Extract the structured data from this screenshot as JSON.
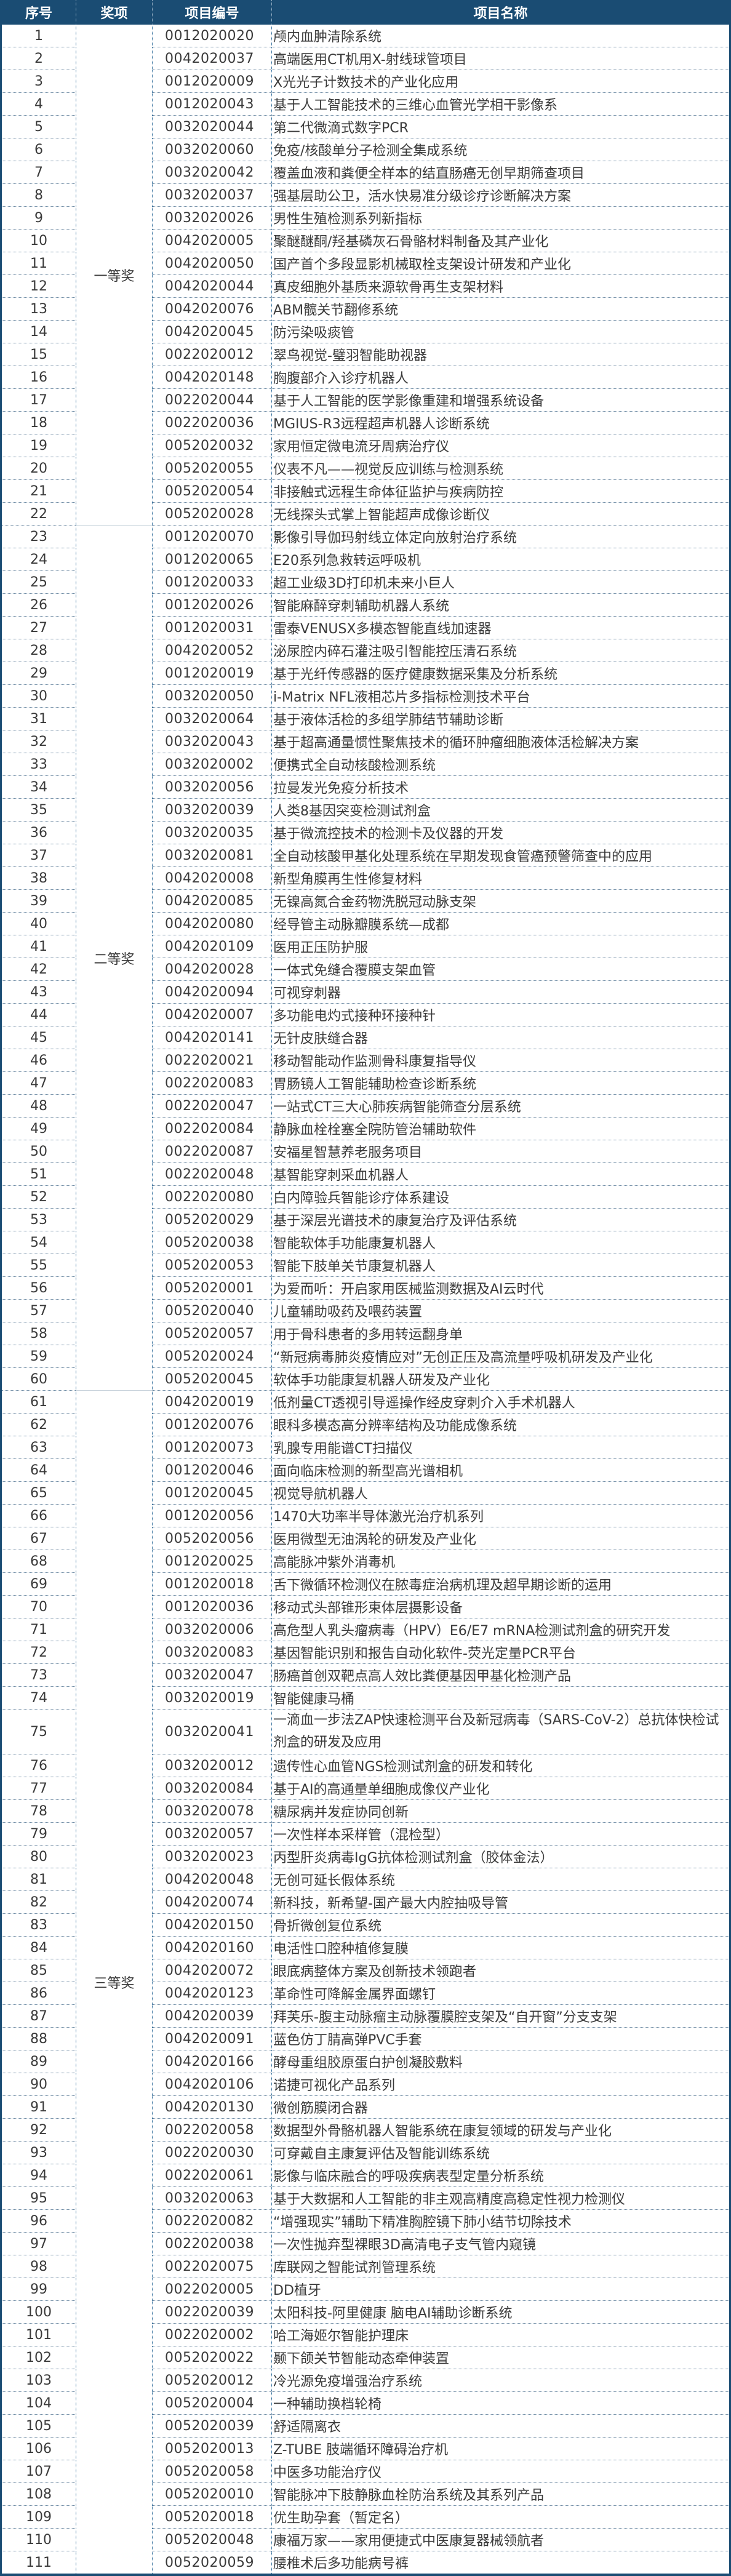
{
  "header": {
    "seq": "序号",
    "award": "奖项",
    "code": "项目编号",
    "name": "项目名称"
  },
  "colors": {
    "header_bg": "#1a4c73",
    "header_text": "#ffffff",
    "text": "#3a3a3a"
  },
  "awards": [
    {
      "label": "一等奖",
      "from": 1,
      "to": 22
    },
    {
      "label": "二等奖",
      "from": 23,
      "to": 60
    },
    {
      "label": "三等奖",
      "from": 61,
      "to": 111
    }
  ],
  "rows": [
    {
      "seq": "1",
      "code": "0012020020",
      "name": "颅内血肿清除系统"
    },
    {
      "seq": "2",
      "code": "0042020037",
      "name": "高端医用CT机用X-射线球管项目"
    },
    {
      "seq": "3",
      "code": "0012020009",
      "name": "X光光子计数技术的产业化应用"
    },
    {
      "seq": "4",
      "code": "0012020043",
      "name": "基于人工智能技术的三维心血管光学相干影像系"
    },
    {
      "seq": "5",
      "code": "0032020044",
      "name": "第二代微滴式数字PCR"
    },
    {
      "seq": "6",
      "code": "0032020060",
      "name": "免疫/核酸单分子检测全集成系统"
    },
    {
      "seq": "7",
      "code": "0032020042",
      "name": "覆盖血液和粪便全样本的结直肠癌无创早期筛查项目"
    },
    {
      "seq": "8",
      "code": "0032020037",
      "name": "强基层助公卫，活水快易准分级诊疗诊断解决方案"
    },
    {
      "seq": "9",
      "code": "0032020026",
      "name": "男性生殖检测系列新指标"
    },
    {
      "seq": "10",
      "code": "0042020005",
      "name": "聚醚醚酮/羟基磷灰石骨骼材料制备及其产业化"
    },
    {
      "seq": "11",
      "code": "0042020050",
      "name": "国产首个多段显影机械取栓支架设计研发和产业化"
    },
    {
      "seq": "12",
      "code": "0042020044",
      "name": "真皮细胞外基质来源软骨再生支架材料"
    },
    {
      "seq": "13",
      "code": "0042020076",
      "name": "ABM髋关节翻修系统"
    },
    {
      "seq": "14",
      "code": "0042020045",
      "name": "防污染吸痰管"
    },
    {
      "seq": "15",
      "code": "0022020012",
      "name": "翠鸟视觉-璧羽智能助视器"
    },
    {
      "seq": "16",
      "code": "0042020148",
      "name": "胸腹部介入诊疗机器人"
    },
    {
      "seq": "17",
      "code": "0022020044",
      "name": "基于人工智能的医学影像重建和增强系统设备"
    },
    {
      "seq": "18",
      "code": "0022020036",
      "name": "MGIUS-R3远程超声机器人诊断系统"
    },
    {
      "seq": "19",
      "code": "0052020032",
      "name": "家用恒定微电流牙周病治疗仪"
    },
    {
      "seq": "20",
      "code": "0052020055",
      "name": "仪表不凡——视觉反应训练与检测系统"
    },
    {
      "seq": "21",
      "code": "0052020054",
      "name": "非接触式远程生命体征监护与疾病防控"
    },
    {
      "seq": "22",
      "code": "0052020028",
      "name": "无线探头式掌上智能超声成像诊断仪"
    },
    {
      "seq": "23",
      "code": "0012020070",
      "name": "影像引导伽玛射线立体定向放射治疗系统"
    },
    {
      "seq": "24",
      "code": "0012020065",
      "name": "E20系列急救转运呼吸机"
    },
    {
      "seq": "25",
      "code": "0012020033",
      "name": "超工业级3D打印机未来小巨人"
    },
    {
      "seq": "26",
      "code": "0012020026",
      "name": "智能麻醉穿刺辅助机器人系统"
    },
    {
      "seq": "27",
      "code": "0012020031",
      "name": "雷泰VENUSX多模态智能直线加速器"
    },
    {
      "seq": "28",
      "code": "0042020052",
      "name": "泌尿腔内碎石灌注吸引智能控压清石系统"
    },
    {
      "seq": "29",
      "code": "0012020019",
      "name": "基于光纤传感器的医疗健康数据采集及分析系统"
    },
    {
      "seq": "30",
      "code": "0032020050",
      "name": "i-Matrix NFL液相芯片多指标检测技术平台"
    },
    {
      "seq": "31",
      "code": "0032020064",
      "name": "基于液体活检的多组学肺结节辅助诊断"
    },
    {
      "seq": "32",
      "code": "0032020043",
      "name": "基于超高通量惯性聚焦技术的循环肿瘤细胞液体活检解决方案"
    },
    {
      "seq": "33",
      "code": "0032020002",
      "name": "便携式全自动核酸检测系统"
    },
    {
      "seq": "34",
      "code": "0032020056",
      "name": "拉曼发光免疫分析技术"
    },
    {
      "seq": "35",
      "code": "0032020039",
      "name": "人类8基因突变检测试剂盒"
    },
    {
      "seq": "36",
      "code": "0032020035",
      "name": "基于微流控技术的检测卡及仪器的开发"
    },
    {
      "seq": "37",
      "code": "0032020081",
      "name": "全自动核酸甲基化处理系统在早期发现食管癌预警筛查中的应用"
    },
    {
      "seq": "38",
      "code": "0042020008",
      "name": "新型角膜再生性修复材料"
    },
    {
      "seq": "39",
      "code": "0042020085",
      "name": "无镍高氮合金药物洗脱冠动脉支架"
    },
    {
      "seq": "40",
      "code": "0042020080",
      "name": "经导管主动脉瓣膜系统—成都"
    },
    {
      "seq": "41",
      "code": "0042020109",
      "name": "医用正压防护服"
    },
    {
      "seq": "42",
      "code": "0042020028",
      "name": "一体式免缝合覆膜支架血管"
    },
    {
      "seq": "43",
      "code": "0042020094",
      "name": "可视穿刺器"
    },
    {
      "seq": "44",
      "code": "0042020007",
      "name": "多功能电灼式接种环接种针"
    },
    {
      "seq": "45",
      "code": "0042020141",
      "name": "无针皮肤缝合器"
    },
    {
      "seq": "46",
      "code": "0022020021",
      "name": "移动智能动作监测骨科康复指导仪"
    },
    {
      "seq": "47",
      "code": "0022020083",
      "name": "胃肠镜人工智能辅助检查诊断系统"
    },
    {
      "seq": "48",
      "code": "0022020047",
      "name": "一站式CT三大心肺疾病智能筛查分层系统"
    },
    {
      "seq": "49",
      "code": "0022020084",
      "name": "静脉血栓栓塞全院防管治辅助软件"
    },
    {
      "seq": "50",
      "code": "0022020087",
      "name": "安福星智慧养老服务项目"
    },
    {
      "seq": "51",
      "code": "0022020048",
      "name": "基智能穿刺采血机器人"
    },
    {
      "seq": "52",
      "code": "0022020080",
      "name": "白内障验兵智能诊疗体系建设"
    },
    {
      "seq": "53",
      "code": "0052020029",
      "name": "基于深层光谱技术的康复治疗及评估系统"
    },
    {
      "seq": "54",
      "code": "0052020038",
      "name": "智能软体手功能康复机器人"
    },
    {
      "seq": "55",
      "code": "0052020053",
      "name": "智能下肢单关节康复机器人"
    },
    {
      "seq": "56",
      "code": "0052020001",
      "name": "为爱而听：开启家用医械监测数据及AI云时代"
    },
    {
      "seq": "57",
      "code": "0052020040",
      "name": "儿童辅助吸药及喂药装置"
    },
    {
      "seq": "58",
      "code": "0052020057",
      "name": "用于骨科患者的多用转运翻身单"
    },
    {
      "seq": "59",
      "code": "0052020024",
      "name": "“新冠病毒肺炎疫情应对”无创正压及高流量呼吸机研发及产业化"
    },
    {
      "seq": "60",
      "code": "0052020045",
      "name": "软体手功能康复机器人研发及产业化"
    },
    {
      "seq": "61",
      "code": "0042020019",
      "name": "低剂量CT透视引导遥操作经皮穿刺介入手术机器人"
    },
    {
      "seq": "62",
      "code": "0012020076",
      "name": "眼科多模态高分辨率结构及功能成像系统"
    },
    {
      "seq": "63",
      "code": "0012020073",
      "name": "乳腺专用能谱CT扫描仪"
    },
    {
      "seq": "64",
      "code": "0012020046",
      "name": "面向临床检测的新型高光谱相机"
    },
    {
      "seq": "65",
      "code": "0012020045",
      "name": "视觉导航机器人"
    },
    {
      "seq": "66",
      "code": "0012020056",
      "name": "1470大功率半导体激光治疗机系列"
    },
    {
      "seq": "67",
      "code": "0052020056",
      "name": "医用微型无油涡轮的研发及产业化"
    },
    {
      "seq": "68",
      "code": "0012020025",
      "name": "高能脉冲紫外消毒机"
    },
    {
      "seq": "69",
      "code": "0012020018",
      "name": "舌下微循环检测仪在脓毒症治病机理及超早期诊断的运用"
    },
    {
      "seq": "70",
      "code": "0012020036",
      "name": "移动式头部锥形束体层摄影设备"
    },
    {
      "seq": "71",
      "code": "0032020006",
      "name": "高危型人乳头瘤病毒（HPV）E6/E7 mRNA检测试剂盒的研究开发"
    },
    {
      "seq": "72",
      "code": "0032020083",
      "name": "基因智能识别和报告自动化软件-荧光定量PCR平台"
    },
    {
      "seq": "73",
      "code": "0032020047",
      "name": "肠癌首创双靶点高人效比粪便基因甲基化检测产品"
    },
    {
      "seq": "74",
      "code": "0032020019",
      "name": "智能健康马桶"
    },
    {
      "seq": "75",
      "code": "0032020041",
      "name": "一滴血一步法ZAP快速检测平台及新冠病毒（SARS-CoV-2）总抗体快检试剂盒的研发及应用"
    },
    {
      "seq": "76",
      "code": "0032020012",
      "name": "遗传性心血管NGS检测试剂盒的研发和转化"
    },
    {
      "seq": "77",
      "code": "0032020084",
      "name": "基于AI的高通量单细胞成像仪产业化"
    },
    {
      "seq": "78",
      "code": "0032020078",
      "name": "糖尿病并发症协同创新"
    },
    {
      "seq": "79",
      "code": "0032020057",
      "name": "一次性样本采样管（混检型）"
    },
    {
      "seq": "80",
      "code": "0032020023",
      "name": "丙型肝炎病毒IgG抗体检测试剂盒（胶体金法）"
    },
    {
      "seq": "81",
      "code": "0042020048",
      "name": "无创可延长假体系统"
    },
    {
      "seq": "82",
      "code": "0042020074",
      "name": "新科技，新希望-国产最大内腔抽吸导管"
    },
    {
      "seq": "83",
      "code": "0042020150",
      "name": "骨折微创复位系统"
    },
    {
      "seq": "84",
      "code": "0042020160",
      "name": "电活性口腔种植修复膜"
    },
    {
      "seq": "85",
      "code": "0042020072",
      "name": "眼底病整体方案及创新技术领跑者"
    },
    {
      "seq": "86",
      "code": "0042020123",
      "name": "革命性可降解金属界面螺钉"
    },
    {
      "seq": "87",
      "code": "0042020039",
      "name": "拜芙乐-腹主动脉瘤主动脉覆膜腔支架及“自开窗”分支支架"
    },
    {
      "seq": "88",
      "code": "0042020091",
      "name": "蓝色仿丁腈高弹PVC手套"
    },
    {
      "seq": "89",
      "code": "0042020166",
      "name": "酵母重组胶原蛋白护创凝胶敷料"
    },
    {
      "seq": "90",
      "code": "0042020106",
      "name": "诺捷可视化产品系列"
    },
    {
      "seq": "91",
      "code": "0042020130",
      "name": "微创筋膜闭合器"
    },
    {
      "seq": "92",
      "code": "0022020058",
      "name": "数据型外骨骼机器人智能系统在康复领域的研发与产业化"
    },
    {
      "seq": "93",
      "code": "0022020030",
      "name": "可穿戴自主康复评估及智能训练系统"
    },
    {
      "seq": "94",
      "code": "0022020061",
      "name": "影像与临床融合的呼吸疾病表型定量分析系统"
    },
    {
      "seq": "95",
      "code": "0032020063",
      "name": "基于大数据和人工智能的非主观高精度高稳定性视力检测仪"
    },
    {
      "seq": "96",
      "code": "0022020082",
      "name": "“增强现实”辅助下精准胸腔镜下肺小结节切除技术"
    },
    {
      "seq": "97",
      "code": "0022020038",
      "name": "一次性抛弃型裸眼3D高清电子支气管内窥镜"
    },
    {
      "seq": "98",
      "code": "0022020075",
      "name": "库联网之智能试剂管理系统"
    },
    {
      "seq": "99",
      "code": "0022020005",
      "name": "DD植牙"
    },
    {
      "seq": "100",
      "code": "0022020039",
      "name": "太阳科技-阿里健康 脑电AI辅助诊断系统"
    },
    {
      "seq": "101",
      "code": "0022020002",
      "name": "哈工海姬尔智能护理床"
    },
    {
      "seq": "102",
      "code": "0052020022",
      "name": "颞下颌关节智能动态牵伸装置"
    },
    {
      "seq": "103",
      "code": "0052020012",
      "name": "冷光源免疫增强治疗系统"
    },
    {
      "seq": "104",
      "code": "0052020004",
      "name": "一种辅助换档轮椅"
    },
    {
      "seq": "105",
      "code": "0052020039",
      "name": "舒适隔离衣"
    },
    {
      "seq": "106",
      "code": "0052020013",
      "name": "Z-TUBE 肢端循环障碍治疗机"
    },
    {
      "seq": "107",
      "code": "0052020058",
      "name": "中医多功能治疗仪"
    },
    {
      "seq": "108",
      "code": "0052020010",
      "name": "智能脉冲下肢静脉血栓防治系统及其系列产品"
    },
    {
      "seq": "109",
      "code": "0052020018",
      "name": "优生助孕套（暂定名）"
    },
    {
      "seq": "110",
      "code": "0052020048",
      "name": "康福万家——家用便捷式中医康复器械领航者"
    },
    {
      "seq": "111",
      "code": "0052020059",
      "name": "腰椎术后多功能病号裤"
    }
  ]
}
